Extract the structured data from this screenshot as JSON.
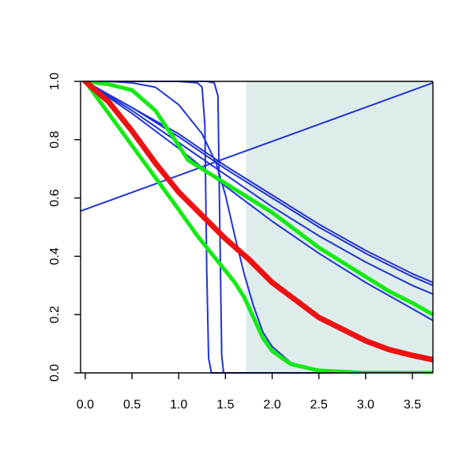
{
  "chart_data": {
    "type": "line",
    "title": "",
    "xlabel": "",
    "ylabel": "",
    "xlim": [
      -0.05,
      3.72
    ],
    "ylim": [
      0.0,
      1.0
    ],
    "x_ticks": [
      0.0,
      0.5,
      1.0,
      1.5,
      2.0,
      2.5,
      3.0,
      3.5
    ],
    "x_tick_labels": [
      "0.0",
      "0.5",
      "1.0",
      "1.5",
      "2.0",
      "2.5",
      "3.0",
      "3.5"
    ],
    "y_ticks": [
      0.0,
      0.2,
      0.4,
      0.6,
      0.8,
      1.0
    ],
    "y_tick_labels": [
      "0.0",
      "0.2",
      "0.4",
      "0.6",
      "0.8",
      "1.0"
    ],
    "grid": false,
    "legend": "none",
    "shaded_region": {
      "x_start": 1.72,
      "x_end": 3.72,
      "color": "#dfecec"
    },
    "colors": {
      "blue": "#1f33d6",
      "green": "#13ea13",
      "red": "#ee1111",
      "axis": "#000000"
    },
    "series": [
      {
        "color": "#ee1111",
        "width": "thick",
        "points": [
          [
            0.0,
            1.0
          ],
          [
            0.25,
            0.93
          ],
          [
            0.5,
            0.83
          ],
          [
            0.75,
            0.72
          ],
          [
            1.0,
            0.62
          ],
          [
            1.25,
            0.54
          ],
          [
            1.5,
            0.46
          ],
          [
            1.75,
            0.39
          ],
          [
            2.0,
            0.31
          ],
          [
            2.25,
            0.25
          ],
          [
            2.5,
            0.19
          ],
          [
            2.75,
            0.15
          ],
          [
            3.0,
            0.11
          ],
          [
            3.25,
            0.08
          ],
          [
            3.5,
            0.06
          ],
          [
            3.72,
            0.045
          ]
        ]
      },
      {
        "color": "#13ea13",
        "width": "thick",
        "points": [
          [
            0.0,
            1.0
          ],
          [
            0.25,
            0.99
          ],
          [
            0.5,
            0.97
          ],
          [
            0.75,
            0.9
          ],
          [
            1.0,
            0.78
          ],
          [
            1.1,
            0.73
          ],
          [
            1.25,
            0.7
          ],
          [
            1.5,
            0.65
          ],
          [
            1.75,
            0.6
          ],
          [
            2.0,
            0.55
          ],
          [
            2.25,
            0.49
          ],
          [
            2.5,
            0.43
          ],
          [
            2.75,
            0.38
          ],
          [
            3.0,
            0.33
          ],
          [
            3.25,
            0.28
          ],
          [
            3.5,
            0.24
          ],
          [
            3.72,
            0.2
          ]
        ]
      },
      {
        "color": "#13ea13",
        "width": "thick",
        "points": [
          [
            0.0,
            1.0
          ],
          [
            0.25,
            0.89
          ],
          [
            0.5,
            0.78
          ],
          [
            0.75,
            0.67
          ],
          [
            1.0,
            0.56
          ],
          [
            1.2,
            0.47
          ],
          [
            1.4,
            0.39
          ],
          [
            1.5,
            0.35
          ],
          [
            1.6,
            0.31
          ],
          [
            1.7,
            0.26
          ],
          [
            1.8,
            0.19
          ],
          [
            1.9,
            0.12
          ],
          [
            2.0,
            0.075
          ],
          [
            2.2,
            0.03
          ],
          [
            2.5,
            0.008
          ],
          [
            3.0,
            0.0
          ],
          [
            3.72,
            0.0
          ]
        ]
      },
      {
        "color": "#1f33d6",
        "width": "thin",
        "points": [
          [
            -0.05,
            0.555
          ],
          [
            3.72,
            0.995
          ]
        ]
      },
      {
        "color": "#1f33d6",
        "width": "thin",
        "points": [
          [
            0.0,
            1.0
          ],
          [
            0.5,
            0.91
          ],
          [
            1.0,
            0.82
          ],
          [
            1.5,
            0.71
          ],
          [
            2.0,
            0.61
          ],
          [
            2.5,
            0.51
          ],
          [
            3.0,
            0.42
          ],
          [
            3.5,
            0.34
          ],
          [
            3.72,
            0.31
          ]
        ]
      },
      {
        "color": "#1f33d6",
        "width": "thin",
        "points": [
          [
            0.0,
            1.0
          ],
          [
            0.5,
            0.91
          ],
          [
            1.0,
            0.81
          ],
          [
            1.5,
            0.7
          ],
          [
            2.0,
            0.6
          ],
          [
            2.5,
            0.5
          ],
          [
            3.0,
            0.41
          ],
          [
            3.5,
            0.33
          ],
          [
            3.72,
            0.3
          ]
        ]
      },
      {
        "color": "#1f33d6",
        "width": "thin",
        "points": [
          [
            0.0,
            1.0
          ],
          [
            0.5,
            0.9
          ],
          [
            1.0,
            0.79
          ],
          [
            1.5,
            0.68
          ],
          [
            2.0,
            0.57
          ],
          [
            2.5,
            0.47
          ],
          [
            3.0,
            0.38
          ],
          [
            3.5,
            0.3
          ],
          [
            3.72,
            0.27
          ]
        ]
      },
      {
        "color": "#1f33d6",
        "width": "thin",
        "points": [
          [
            0.0,
            1.0
          ],
          [
            0.5,
            0.89
          ],
          [
            1.0,
            0.77
          ],
          [
            1.5,
            0.64
          ],
          [
            2.0,
            0.52
          ],
          [
            2.5,
            0.41
          ],
          [
            3.0,
            0.31
          ],
          [
            3.5,
            0.22
          ],
          [
            3.72,
            0.18
          ]
        ]
      },
      {
        "color": "#1f33d6",
        "width": "thin",
        "points": [
          [
            0.0,
            1.0
          ],
          [
            0.25,
            1.0
          ],
          [
            0.5,
            0.995
          ],
          [
            0.75,
            0.98
          ],
          [
            1.0,
            0.92
          ],
          [
            1.25,
            0.82
          ],
          [
            1.4,
            0.72
          ],
          [
            1.5,
            0.61
          ],
          [
            1.6,
            0.47
          ],
          [
            1.7,
            0.34
          ],
          [
            1.8,
            0.23
          ],
          [
            1.9,
            0.14
          ],
          [
            2.0,
            0.09
          ],
          [
            2.2,
            0.035
          ],
          [
            2.5,
            0.008
          ],
          [
            3.0,
            0.0
          ],
          [
            3.72,
            0.0
          ]
        ]
      },
      {
        "color": "#1f33d6",
        "width": "thin",
        "points": [
          [
            0.0,
            1.0
          ],
          [
            1.0,
            1.0
          ],
          [
            1.2,
            0.995
          ],
          [
            1.25,
            0.98
          ],
          [
            1.28,
            0.85
          ],
          [
            1.3,
            0.35
          ],
          [
            1.32,
            0.05
          ],
          [
            1.35,
            0.0
          ],
          [
            3.72,
            0.0
          ]
        ]
      },
      {
        "color": "#1f33d6",
        "width": "thin",
        "points": [
          [
            0.0,
            1.0
          ],
          [
            1.3,
            1.0
          ],
          [
            1.38,
            0.995
          ],
          [
            1.42,
            0.95
          ],
          [
            1.44,
            0.5
          ],
          [
            1.46,
            0.06
          ],
          [
            1.48,
            0.0
          ],
          [
            3.72,
            0.0
          ]
        ]
      }
    ]
  }
}
